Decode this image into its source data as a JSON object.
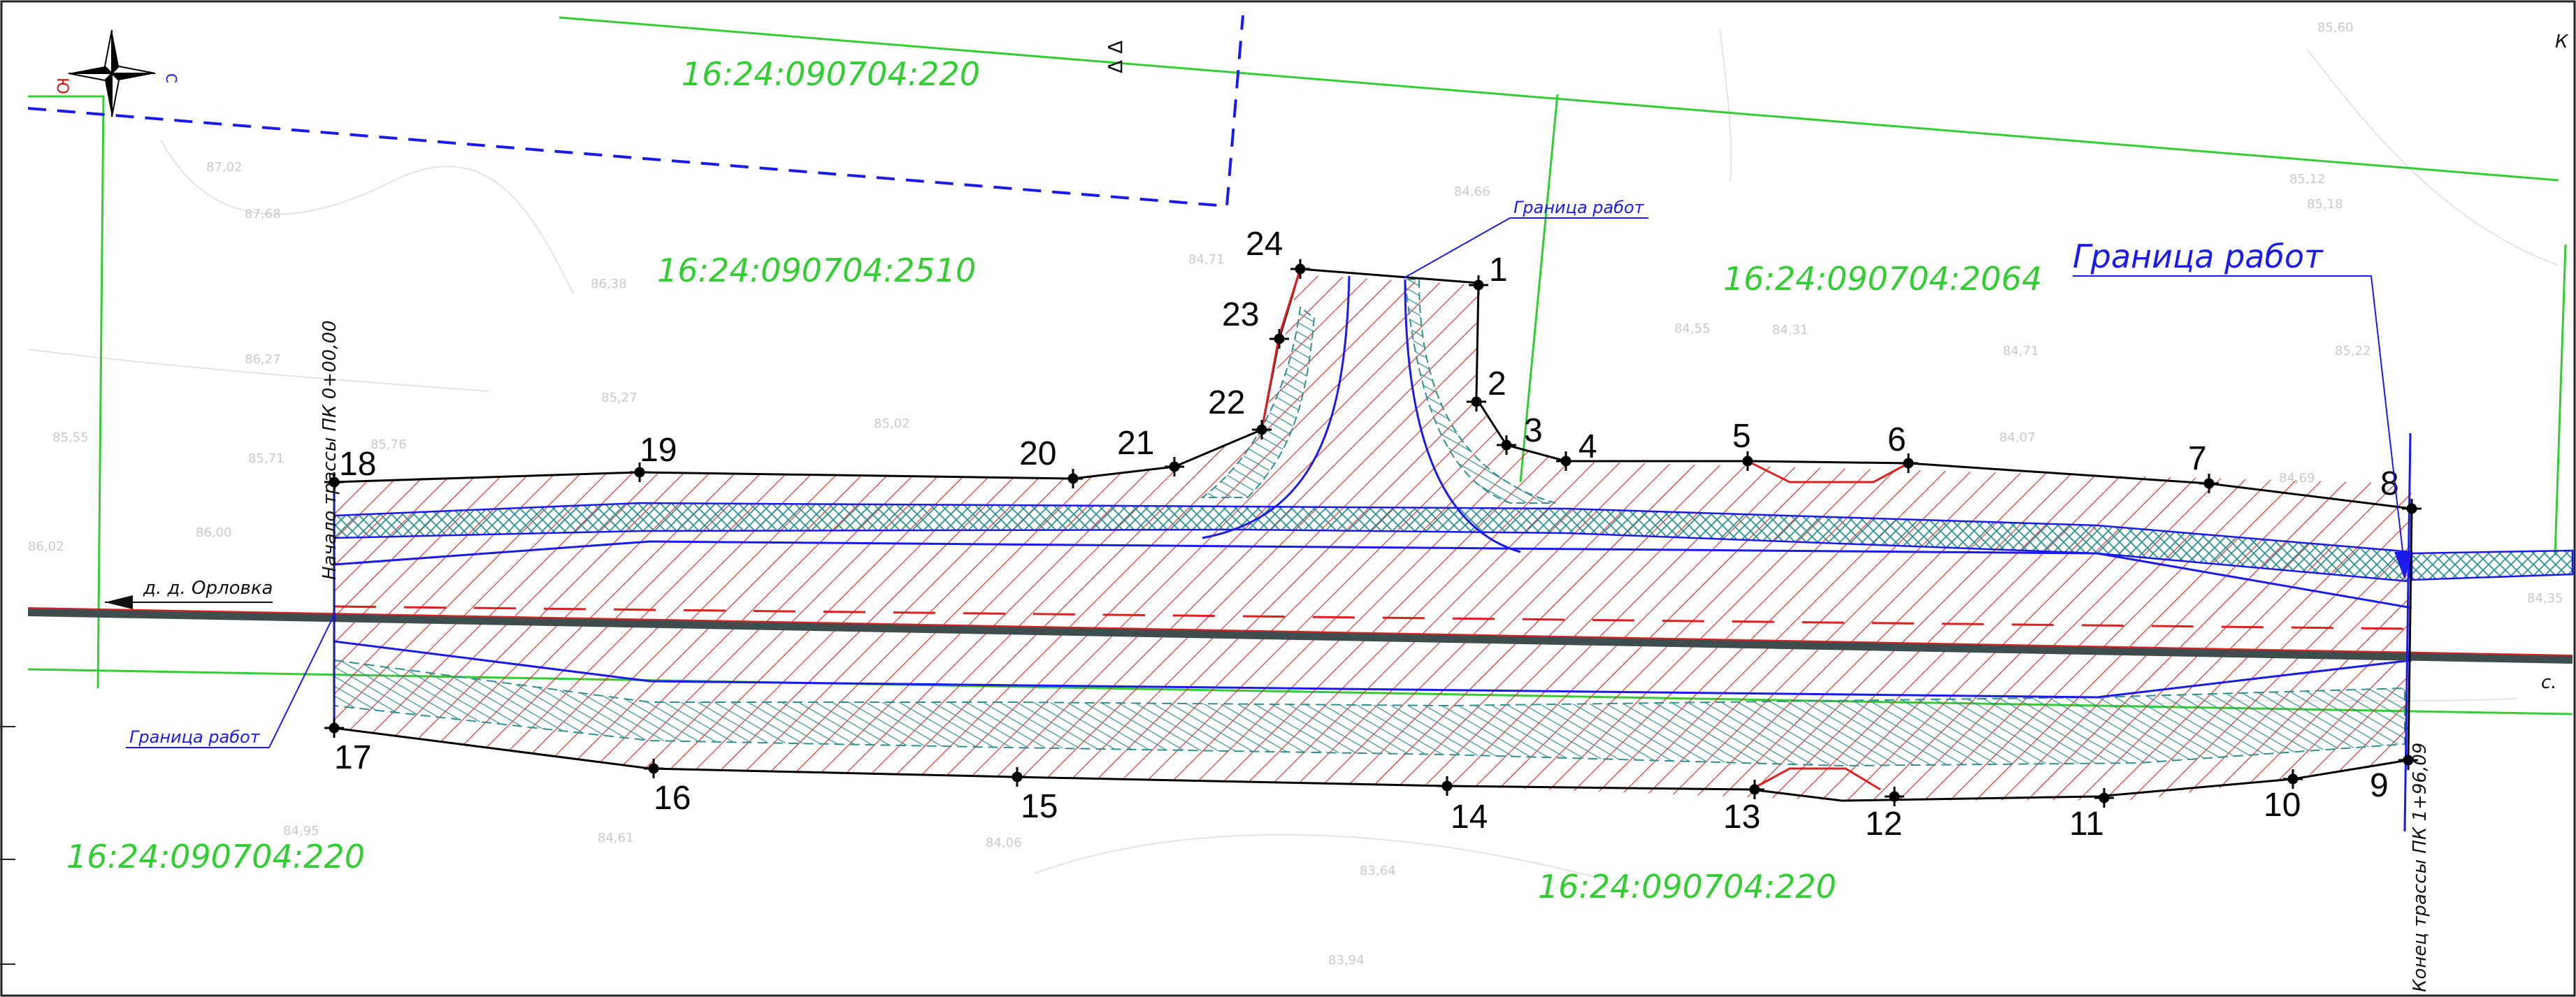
{
  "colors": {
    "parcel": "#33cc33",
    "boundary_blue": "#1a1aee",
    "hatch_red": "#e02020",
    "slope_teal": "#2f8f8f",
    "road_dark": "#3e4e4e",
    "north_mark": "#cc1111"
  },
  "compass": {
    "icon": "compass-rose-icon",
    "north_letter": "Ю",
    "east_letter": "С"
  },
  "parcels": [
    {
      "id": "parcel-top",
      "text": "16:24:090704:220"
    },
    {
      "id": "parcel-mid-left",
      "text": "16:24:090704:2510"
    },
    {
      "id": "parcel-mid-right",
      "text": "16:24:090704:2064"
    },
    {
      "id": "parcel-bottom-left",
      "text": "16:24:090704:220"
    },
    {
      "id": "parcel-bottom-right",
      "text": "16:24:090704:220"
    }
  ],
  "labels": {
    "boundary_large": "Граница работ",
    "boundary_small_top": "Граница работ",
    "boundary_small_left": "Граница работ",
    "direction_left": "д. д. Орловка",
    "direction_right": "с. ",
    "start_station": "Начало трассы ПК 0+00,00",
    "end_station": "Конец трассы ПК 1+96,09",
    "corner_letter": "К",
    "triangle_mark": "Δ Δ"
  },
  "points": [
    "1",
    "2",
    "3",
    "4",
    "5",
    "6",
    "7",
    "8",
    "9",
    "10",
    "11",
    "12",
    "13",
    "14",
    "15",
    "16",
    "17",
    "18",
    "19",
    "20",
    "21",
    "22",
    "23",
    "24"
  ],
  "elevations": [
    "87,02",
    "87,68",
    "86,38",
    "86,27",
    "85,27",
    "85,02",
    "85,76",
    "85,71",
    "85,55",
    "86,00",
    "84,71",
    "84,66",
    "84,55",
    "84,31",
    "84,71",
    "85,22",
    "85,12",
    "85,18",
    "84,07",
    "84,69",
    "84,61",
    "84,06",
    "83,64",
    "83,94",
    "86,02",
    "84,95",
    "85,60",
    "84,35"
  ]
}
